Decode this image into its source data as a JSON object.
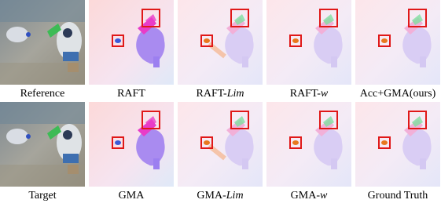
{
  "figure": {
    "rows": [
      {
        "panels": [
          {
            "caption": {
              "text": "Reference"
            }
          },
          {
            "caption": {
              "text": "RAFT"
            }
          },
          {
            "caption": {
              "text": "RAFT-",
              "em": "Lim"
            }
          },
          {
            "caption": {
              "text": "RAFT-",
              "em": "w"
            }
          },
          {
            "caption": {
              "text": "Acc+GMA(ours)"
            }
          }
        ]
      },
      {
        "panels": [
          {
            "caption": {
              "text": "Target"
            }
          },
          {
            "caption": {
              "text": "GMA"
            }
          },
          {
            "caption": {
              "text": "GMA-",
              "em": "Lim"
            }
          },
          {
            "caption": {
              "text": "GMA-",
              "em": "w"
            }
          },
          {
            "caption": {
              "text": "Ground Truth"
            }
          }
        ]
      }
    ]
  }
}
